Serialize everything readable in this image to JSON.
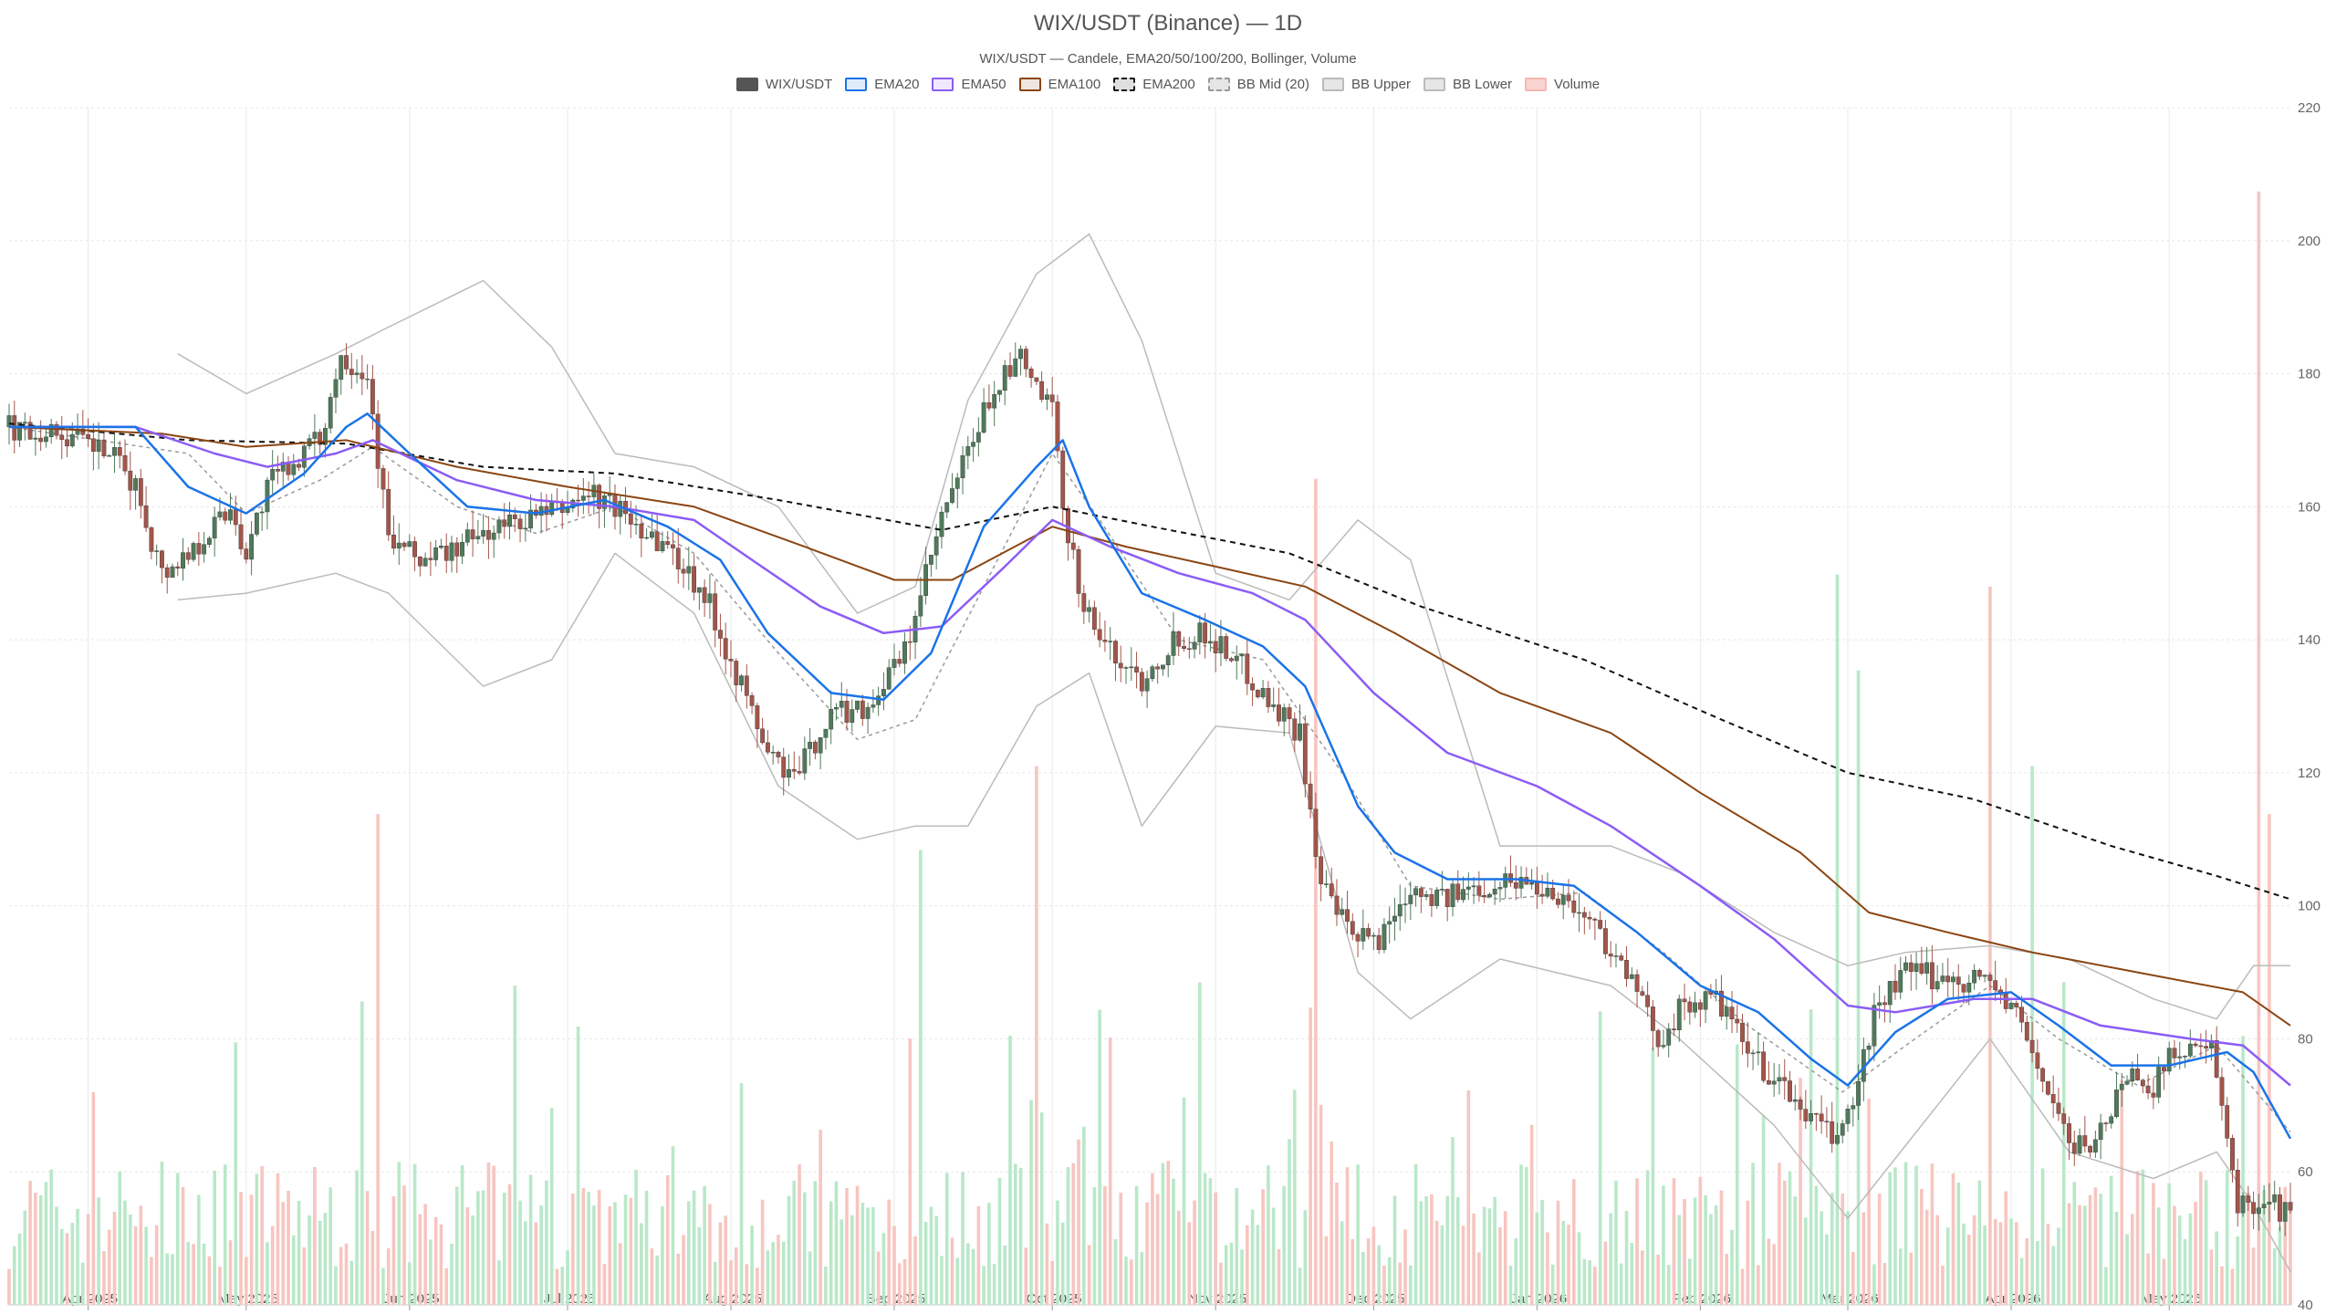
{
  "title": "WIX/USDT (Binance) — 1D",
  "subtitle": "WIX/USDT — Candele, EMA20/50/100/200, Bollinger, Volume",
  "legend": [
    {
      "label": "WIX/USDT",
      "style": "candle"
    },
    {
      "label": "EMA20",
      "color": "#1a73e8"
    },
    {
      "label": "EMA50",
      "color": "#8b5cf6"
    },
    {
      "label": "EMA100",
      "color": "#8b4513"
    },
    {
      "label": "EMA200",
      "color": "#111111",
      "dashed": true
    },
    {
      "label": "BB Mid (20)",
      "color": "#999999",
      "dashed": true
    },
    {
      "label": "BB Upper",
      "color": "#bbbbbb"
    },
    {
      "label": "BB Lower",
      "color": "#bbbbbb"
    },
    {
      "label": "Volume",
      "color": "#f5b7b1"
    }
  ],
  "colors": {
    "up": "#4f7a5a",
    "down": "#a4554a",
    "vol_up": "#b9e8c9",
    "vol_down": "#f7c5c0",
    "ema20": "#1a73e8",
    "ema50": "#8b5cf6",
    "ema100": "#8b4513",
    "ema200": "#111111",
    "bb": "#bbbbbb",
    "bb_mid": "#999999",
    "grid": "#e8e8e8"
  },
  "chart_data": {
    "type": "candlestick",
    "title": "WIX/USDT (Binance) — 1D",
    "subtitle": "WIX/USDT — Candele, EMA20/50/100/200, Bollinger, Volume",
    "ylim": [
      40,
      220
    ],
    "y_ticks": [
      40,
      60,
      80,
      100,
      120,
      140,
      160,
      180,
      200,
      220
    ],
    "x_start": "2025-03-17",
    "x_end": "2026-05-24",
    "x_ticks": [
      {
        "date": "2025-04-01",
        "label": "Apr 2025"
      },
      {
        "date": "2025-05-01",
        "label": "May 2025"
      },
      {
        "date": "2025-06-01",
        "label": "Jun 2025"
      },
      {
        "date": "2025-07-01",
        "label": "Jul 2025"
      },
      {
        "date": "2025-08-01",
        "label": "Aug 2025"
      },
      {
        "date": "2025-09-01",
        "label": "Sep 2025"
      },
      {
        "date": "2025-10-01",
        "label": "Oct 2025"
      },
      {
        "date": "2025-11-01",
        "label": "Nov 2025"
      },
      {
        "date": "2025-12-01",
        "label": "Dec 2025"
      },
      {
        "date": "2026-01-01",
        "label": "Jan 2026"
      },
      {
        "date": "2026-02-01",
        "label": "Feb 2026"
      },
      {
        "date": "2026-03-01",
        "label": "Mar 2026"
      },
      {
        "date": "2026-04-01",
        "label": "Apr 2026"
      },
      {
        "date": "2026-05-01",
        "label": "May 2026"
      }
    ],
    "grid": true,
    "legend_position": "top-center",
    "close_path": [
      [
        "2025-03-17",
        172
      ],
      [
        "2025-03-27",
        171
      ],
      [
        "2025-04-05",
        168
      ],
      [
        "2025-04-10",
        163
      ],
      [
        "2025-04-15",
        150
      ],
      [
        "2025-04-20",
        153
      ],
      [
        "2025-04-28",
        160
      ],
      [
        "2025-05-01",
        153
      ],
      [
        "2025-05-05",
        163
      ],
      [
        "2025-05-10",
        167
      ],
      [
        "2025-05-15",
        170
      ],
      [
        "2025-05-19",
        183
      ],
      [
        "2025-05-24",
        180
      ],
      [
        "2025-05-28",
        155
      ],
      [
        "2025-06-03",
        152
      ],
      [
        "2025-06-08",
        153
      ],
      [
        "2025-06-15",
        156
      ],
      [
        "2025-06-22",
        158
      ],
      [
        "2025-06-28",
        159
      ],
      [
        "2025-07-05",
        162
      ],
      [
        "2025-07-10",
        160
      ],
      [
        "2025-07-15",
        157
      ],
      [
        "2025-07-20",
        154
      ],
      [
        "2025-07-27",
        147
      ],
      [
        "2025-08-03",
        133
      ],
      [
        "2025-08-08",
        123
      ],
      [
        "2025-08-13",
        119
      ],
      [
        "2025-08-20",
        129
      ],
      [
        "2025-08-27",
        130
      ],
      [
        "2025-09-03",
        138
      ],
      [
        "2025-09-10",
        158
      ],
      [
        "2025-09-15",
        168
      ],
      [
        "2025-09-20",
        178
      ],
      [
        "2025-09-25",
        182
      ],
      [
        "2025-10-01",
        174
      ],
      [
        "2025-10-03",
        160
      ],
      [
        "2025-10-07",
        145
      ],
      [
        "2025-10-12",
        138
      ],
      [
        "2025-10-18",
        134
      ],
      [
        "2025-10-24",
        140
      ],
      [
        "2025-10-30",
        141
      ],
      [
        "2025-11-05",
        137
      ],
      [
        "2025-11-12",
        130
      ],
      [
        "2025-11-17",
        126
      ],
      [
        "2025-11-21",
        103
      ],
      [
        "2025-11-27",
        95
      ],
      [
        "2025-12-02",
        95
      ],
      [
        "2025-12-08",
        103
      ],
      [
        "2025-12-15",
        101
      ],
      [
        "2025-12-21",
        103
      ],
      [
        "2025-12-28",
        104
      ],
      [
        "2026-01-05",
        102
      ],
      [
        "2026-01-12",
        97
      ],
      [
        "2026-01-18",
        90
      ],
      [
        "2026-01-24",
        80
      ],
      [
        "2026-01-29",
        85
      ],
      [
        "2026-02-04",
        86
      ],
      [
        "2026-02-10",
        78
      ],
      [
        "2026-02-16",
        73
      ],
      [
        "2026-02-22",
        68
      ],
      [
        "2026-02-26",
        65
      ],
      [
        "2026-03-02",
        70
      ],
      [
        "2026-03-06",
        84
      ],
      [
        "2026-03-12",
        90
      ],
      [
        "2026-03-20",
        89
      ],
      [
        "2026-03-28",
        89
      ],
      [
        "2026-04-03",
        82
      ],
      [
        "2026-04-08",
        72
      ],
      [
        "2026-04-13",
        63
      ],
      [
        "2026-04-18",
        66
      ],
      [
        "2026-04-23",
        75
      ],
      [
        "2026-04-28",
        73
      ],
      [
        "2026-05-03",
        79
      ],
      [
        "2026-05-09",
        78
      ],
      [
        "2026-05-14",
        55
      ],
      [
        "2026-05-20",
        56
      ],
      [
        "2026-05-24",
        53
      ]
    ],
    "ema20": [
      [
        "2025-03-17",
        172
      ],
      [
        "2025-04-10",
        172
      ],
      [
        "2025-04-20",
        163
      ],
      [
        "2025-05-01",
        159
      ],
      [
        "2025-05-12",
        165
      ],
      [
        "2025-05-20",
        172
      ],
      [
        "2025-05-24",
        174
      ],
      [
        "2025-06-01",
        168
      ],
      [
        "2025-06-12",
        160
      ],
      [
        "2025-06-25",
        159
      ],
      [
        "2025-07-08",
        161
      ],
      [
        "2025-07-20",
        157
      ],
      [
        "2025-07-30",
        152
      ],
      [
        "2025-08-08",
        141
      ],
      [
        "2025-08-20",
        132
      ],
      [
        "2025-08-30",
        131
      ],
      [
        "2025-09-08",
        138
      ],
      [
        "2025-09-18",
        157
      ],
      [
        "2025-09-28",
        166
      ],
      [
        "2025-10-03",
        170
      ],
      [
        "2025-10-08",
        160
      ],
      [
        "2025-10-18",
        147
      ],
      [
        "2025-10-30",
        143
      ],
      [
        "2025-11-10",
        139
      ],
      [
        "2025-11-18",
        133
      ],
      [
        "2025-11-28",
        115
      ],
      [
        "2025-12-05",
        108
      ],
      [
        "2025-12-15",
        104
      ],
      [
        "2025-12-28",
        104
      ],
      [
        "2026-01-08",
        103
      ],
      [
        "2026-01-20",
        96
      ],
      [
        "2026-02-01",
        88
      ],
      [
        "2026-02-12",
        84
      ],
      [
        "2026-02-22",
        77
      ],
      [
        "2026-03-01",
        73
      ],
      [
        "2026-03-10",
        81
      ],
      [
        "2026-03-20",
        86
      ],
      [
        "2026-04-01",
        87
      ],
      [
        "2026-04-10",
        82
      ],
      [
        "2026-04-20",
        76
      ],
      [
        "2026-05-01",
        76
      ],
      [
        "2026-05-12",
        78
      ],
      [
        "2026-05-17",
        75
      ],
      [
        "2026-05-24",
        65
      ]
    ],
    "ema50": [
      [
        "2025-03-17",
        172
      ],
      [
        "2025-04-10",
        172
      ],
      [
        "2025-04-25",
        168
      ],
      [
        "2025-05-05",
        166
      ],
      [
        "2025-05-18",
        168
      ],
      [
        "2025-05-25",
        170
      ],
      [
        "2025-06-10",
        164
      ],
      [
        "2025-06-25",
        161
      ],
      [
        "2025-07-10",
        160
      ],
      [
        "2025-07-25",
        158
      ],
      [
        "2025-08-05",
        152
      ],
      [
        "2025-08-18",
        145
      ],
      [
        "2025-08-30",
        141
      ],
      [
        "2025-09-10",
        142
      ],
      [
        "2025-09-22",
        151
      ],
      [
        "2025-10-01",
        158
      ],
      [
        "2025-10-12",
        154
      ],
      [
        "2025-10-25",
        150
      ],
      [
        "2025-11-08",
        147
      ],
      [
        "2025-11-18",
        143
      ],
      [
        "2025-12-01",
        132
      ],
      [
        "2025-12-15",
        123
      ],
      [
        "2026-01-01",
        118
      ],
      [
        "2026-01-15",
        112
      ],
      [
        "2026-02-01",
        103
      ],
      [
        "2026-02-15",
        95
      ],
      [
        "2026-03-01",
        85
      ],
      [
        "2026-03-10",
        84
      ],
      [
        "2026-03-25",
        86
      ],
      [
        "2026-04-05",
        86
      ],
      [
        "2026-04-18",
        82
      ],
      [
        "2026-05-05",
        80
      ],
      [
        "2026-05-15",
        79
      ],
      [
        "2026-05-24",
        73
      ]
    ],
    "ema100": [
      [
        "2025-03-17",
        172
      ],
      [
        "2025-04-15",
        171
      ],
      [
        "2025-05-01",
        169
      ],
      [
        "2025-05-20",
        170
      ],
      [
        "2025-06-10",
        166
      ],
      [
        "2025-07-01",
        163
      ],
      [
        "2025-07-25",
        160
      ],
      [
        "2025-08-15",
        154
      ],
      [
        "2025-09-01",
        149
      ],
      [
        "2025-09-12",
        149
      ],
      [
        "2025-10-01",
        157
      ],
      [
        "2025-10-15",
        154
      ],
      [
        "2025-11-01",
        151
      ],
      [
        "2025-11-18",
        148
      ],
      [
        "2025-12-05",
        141
      ],
      [
        "2025-12-25",
        132
      ],
      [
        "2026-01-15",
        126
      ],
      [
        "2026-02-01",
        117
      ],
      [
        "2026-02-20",
        108
      ],
      [
        "2026-03-05",
        99
      ],
      [
        "2026-03-20",
        96
      ],
      [
        "2026-04-05",
        93
      ],
      [
        "2026-04-25",
        90
      ],
      [
        "2026-05-15",
        87
      ],
      [
        "2026-05-24",
        82
      ]
    ],
    "ema200": [
      [
        "2025-03-17",
        172.5
      ],
      [
        "2025-04-20",
        170
      ],
      [
        "2025-05-20",
        169.5
      ],
      [
        "2025-06-15",
        166
      ],
      [
        "2025-07-10",
        165
      ],
      [
        "2025-08-10",
        161
      ],
      [
        "2025-09-10",
        156.5
      ],
      [
        "2025-10-01",
        160
      ],
      [
        "2025-10-20",
        157
      ],
      [
        "2025-11-15",
        153
      ],
      [
        "2025-12-10",
        145
      ],
      [
        "2026-01-10",
        137
      ],
      [
        "2026-02-05",
        128
      ],
      [
        "2026-03-01",
        120
      ],
      [
        "2026-03-25",
        116
      ],
      [
        "2026-04-20",
        109
      ],
      [
        "2026-05-10",
        104.5
      ],
      [
        "2026-05-24",
        101
      ]
    ],
    "bb_mid": [
      [
        "2025-03-17",
        172
      ],
      [
        "2025-04-20",
        168
      ],
      [
        "2025-05-01",
        159
      ],
      [
        "2025-05-15",
        164
      ],
      [
        "2025-05-25",
        169
      ],
      [
        "2025-06-10",
        160
      ],
      [
        "2025-06-25",
        156
      ],
      [
        "2025-07-10",
        160
      ],
      [
        "2025-07-25",
        153
      ],
      [
        "2025-08-10",
        138
      ],
      [
        "2025-08-25",
        125
      ],
      [
        "2025-09-05",
        128
      ],
      [
        "2025-09-18",
        148
      ],
      [
        "2025-10-01",
        168
      ],
      [
        "2025-10-10",
        158
      ],
      [
        "2025-10-25",
        140
      ],
      [
        "2025-11-10",
        137
      ],
      [
        "2025-11-25",
        120
      ],
      [
        "2025-12-08",
        103
      ],
      [
        "2025-12-25",
        101
      ],
      [
        "2026-01-10",
        102
      ],
      [
        "2026-01-25",
        93
      ],
      [
        "2026-02-10",
        82
      ],
      [
        "2026-02-28",
        72
      ],
      [
        "2026-03-12",
        79
      ],
      [
        "2026-03-28",
        88
      ],
      [
        "2026-04-10",
        80
      ],
      [
        "2026-04-25",
        73
      ],
      [
        "2026-05-10",
        79
      ],
      [
        "2026-05-24",
        66
      ]
    ],
    "bb_upper": [
      [
        "2025-04-18",
        183
      ],
      [
        "2025-05-01",
        177
      ],
      [
        "2025-05-18",
        183
      ],
      [
        "2025-05-28",
        187
      ],
      [
        "2025-06-15",
        194
      ],
      [
        "2025-06-28",
        184
      ],
      [
        "2025-07-10",
        168
      ],
      [
        "2025-07-25",
        166
      ],
      [
        "2025-08-10",
        160
      ],
      [
        "2025-08-25",
        144
      ],
      [
        "2025-09-05",
        148
      ],
      [
        "2025-09-15",
        176
      ],
      [
        "2025-09-28",
        195
      ],
      [
        "2025-10-08",
        201
      ],
      [
        "2025-10-18",
        185
      ],
      [
        "2025-11-01",
        150
      ],
      [
        "2025-11-15",
        146
      ],
      [
        "2025-11-28",
        158
      ],
      [
        "2025-12-08",
        152
      ],
      [
        "2025-12-25",
        109
      ],
      [
        "2026-01-15",
        109
      ],
      [
        "2026-01-28",
        105
      ],
      [
        "2026-02-15",
        96
      ],
      [
        "2026-03-01",
        91
      ],
      [
        "2026-03-12",
        93
      ],
      [
        "2026-03-28",
        94
      ],
      [
        "2026-04-12",
        92
      ],
      [
        "2026-04-28",
        86
      ],
      [
        "2026-05-10",
        83
      ],
      [
        "2026-05-17",
        91
      ],
      [
        "2026-05-24",
        91
      ]
    ],
    "bb_lower": [
      [
        "2025-04-18",
        146
      ],
      [
        "2025-05-01",
        147
      ],
      [
        "2025-05-18",
        150
      ],
      [
        "2025-05-28",
        147
      ],
      [
        "2025-06-15",
        133
      ],
      [
        "2025-06-28",
        137
      ],
      [
        "2025-07-10",
        153
      ],
      [
        "2025-07-25",
        144
      ],
      [
        "2025-08-10",
        118
      ],
      [
        "2025-08-25",
        110
      ],
      [
        "2025-09-05",
        112
      ],
      [
        "2025-09-15",
        112
      ],
      [
        "2025-09-28",
        130
      ],
      [
        "2025-10-08",
        135
      ],
      [
        "2025-10-18",
        112
      ],
      [
        "2025-11-01",
        127
      ],
      [
        "2025-11-15",
        126
      ],
      [
        "2025-11-28",
        90
      ],
      [
        "2025-12-08",
        83
      ],
      [
        "2025-12-25",
        92
      ],
      [
        "2026-01-15",
        88
      ],
      [
        "2026-01-28",
        80
      ],
      [
        "2026-02-15",
        67
      ],
      [
        "2026-03-01",
        53
      ],
      [
        "2026-03-12",
        64
      ],
      [
        "2026-03-28",
        80
      ],
      [
        "2026-04-12",
        63
      ],
      [
        "2026-04-28",
        59
      ],
      [
        "2026-05-10",
        63
      ],
      [
        "2026-05-17",
        55
      ],
      [
        "2026-05-24",
        45
      ]
    ],
    "volume_spikes": [
      {
        "date": "2025-05-26",
        "height": 0.41,
        "dir": "down"
      },
      {
        "date": "2025-09-06",
        "height": 0.38,
        "dir": "up"
      },
      {
        "date": "2025-09-28",
        "height": 0.45,
        "dir": "down"
      },
      {
        "date": "2025-11-20",
        "height": 0.69,
        "dir": "down"
      },
      {
        "date": "2026-02-27",
        "height": 0.61,
        "dir": "up"
      },
      {
        "date": "2026-03-03",
        "height": 0.53,
        "dir": "up"
      },
      {
        "date": "2026-03-28",
        "height": 0.6,
        "dir": "down"
      },
      {
        "date": "2026-04-05",
        "height": 0.45,
        "dir": "up"
      },
      {
        "date": "2026-05-18",
        "height": 0.93,
        "dir": "down"
      },
      {
        "date": "2026-05-20",
        "height": 0.41,
        "dir": "down"
      }
    ]
  }
}
